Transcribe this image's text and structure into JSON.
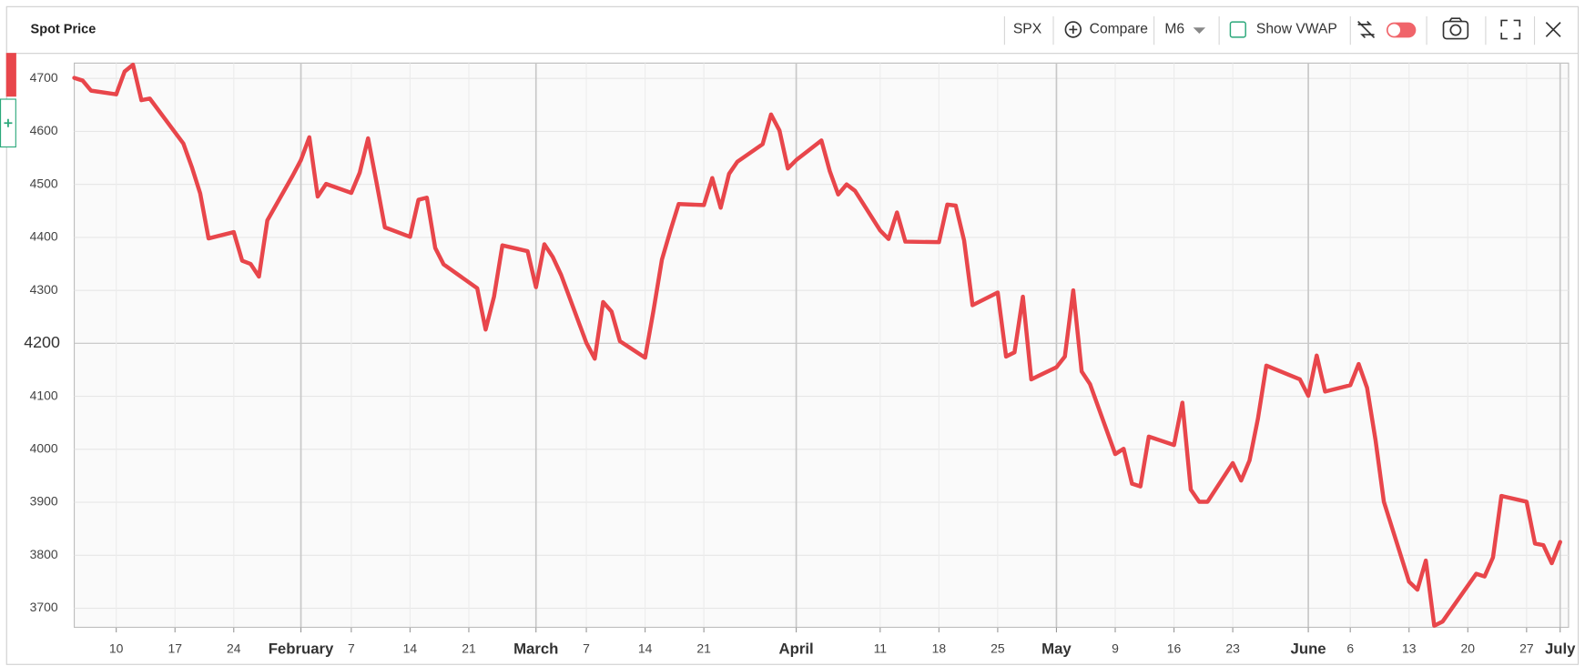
{
  "toolbar": {
    "symbol": "SPX",
    "compare": "Compare",
    "period": "M6",
    "vwap": "Show VWAP"
  },
  "chart_data": {
    "type": "line",
    "title": "Spot Price",
    "x": [
      "01-05",
      "01-06",
      "01-07",
      "01-10",
      "01-11",
      "01-12",
      "01-13",
      "01-14",
      "01-18",
      "01-19",
      "01-20",
      "01-21",
      "01-24",
      "01-25",
      "01-26",
      "01-27",
      "01-28",
      "01-31",
      "02-01",
      "02-02",
      "02-03",
      "02-04",
      "02-07",
      "02-08",
      "02-09",
      "02-10",
      "02-11",
      "02-14",
      "02-15",
      "02-16",
      "02-17",
      "02-18",
      "02-22",
      "02-23",
      "02-24",
      "02-25",
      "02-28",
      "03-01",
      "03-02",
      "03-03",
      "03-04",
      "03-07",
      "03-08",
      "03-09",
      "03-10",
      "03-11",
      "03-14",
      "03-15",
      "03-16",
      "03-17",
      "03-18",
      "03-21",
      "03-22",
      "03-23",
      "03-24",
      "03-25",
      "03-28",
      "03-29",
      "03-30",
      "03-31",
      "04-01",
      "04-04",
      "04-05",
      "04-06",
      "04-07",
      "04-08",
      "04-11",
      "04-12",
      "04-13",
      "04-14",
      "04-18",
      "04-19",
      "04-20",
      "04-21",
      "04-22",
      "04-25",
      "04-26",
      "04-27",
      "04-28",
      "04-29",
      "05-02",
      "05-03",
      "05-04",
      "05-05",
      "05-06",
      "05-09",
      "05-10",
      "05-11",
      "05-12",
      "05-13",
      "05-16",
      "05-17",
      "05-18",
      "05-19",
      "05-20",
      "05-23",
      "05-24",
      "05-25",
      "05-26",
      "05-27",
      "05-31",
      "06-01",
      "06-02",
      "06-03",
      "06-06",
      "06-07",
      "06-08",
      "06-09",
      "06-10",
      "06-13",
      "06-14",
      "06-15",
      "06-16",
      "06-17",
      "06-21",
      "06-22",
      "06-23",
      "06-24",
      "06-27",
      "06-28",
      "06-29",
      "06-30",
      "07-01"
    ],
    "series": [
      {
        "name": "SPX",
        "color": "#e8464b",
        "values": [
          4701,
          4696,
          4677,
          4670,
          4713,
          4726,
          4659,
          4662,
          4577,
          4533,
          4483,
          4398,
          4410,
          4356,
          4350,
          4326,
          4432,
          4516,
          4546,
          4589,
          4477,
          4501,
          4484,
          4522,
          4587,
          4504,
          4419,
          4401,
          4471,
          4475,
          4380,
          4349,
          4304,
          4226,
          4288,
          4385,
          4374,
          4306,
          4387,
          4363,
          4329,
          4201,
          4171,
          4278,
          4260,
          4204,
          4173,
          4262,
          4358,
          4412,
          4463,
          4461,
          4512,
          4456,
          4520,
          4543,
          4576,
          4632,
          4602,
          4530,
          4546,
          4583,
          4525,
          4481,
          4500,
          4488,
          4413,
          4397,
          4447,
          4392,
          4391,
          4462,
          4460,
          4394,
          4272,
          4296,
          4175,
          4183,
          4288,
          4132,
          4155,
          4175,
          4300,
          4147,
          4123,
          3991,
          4001,
          3935,
          3930,
          4024,
          4008,
          4088,
          3924,
          3901,
          3901,
          3974,
          3941,
          3979,
          4058,
          4158,
          4132,
          4101,
          4177,
          4109,
          4121,
          4161,
          4116,
          4018,
          3901,
          3750,
          3735,
          3790,
          3667,
          3675,
          3765,
          3760,
          3796,
          3912,
          3901,
          3822,
          3819,
          3785,
          3825
        ]
      }
    ],
    "xlim": [
      "01-05",
      "07-02"
    ],
    "xticks": [
      {
        "value": "01-10",
        "label": "10"
      },
      {
        "value": "01-17",
        "label": "17"
      },
      {
        "value": "01-24",
        "label": "24"
      },
      {
        "value": "02-01",
        "label": "February"
      },
      {
        "value": "02-07",
        "label": "7"
      },
      {
        "value": "02-14",
        "label": "14"
      },
      {
        "value": "02-21",
        "label": "21"
      },
      {
        "value": "03-01",
        "label": "March"
      },
      {
        "value": "03-07",
        "label": "7"
      },
      {
        "value": "03-14",
        "label": "14"
      },
      {
        "value": "03-21",
        "label": "21"
      },
      {
        "value": "04-01",
        "label": "April"
      },
      {
        "value": "04-11",
        "label": "11"
      },
      {
        "value": "04-18",
        "label": "18"
      },
      {
        "value": "04-25",
        "label": "25"
      },
      {
        "value": "05-02",
        "label": "May"
      },
      {
        "value": "05-09",
        "label": "9"
      },
      {
        "value": "05-16",
        "label": "16"
      },
      {
        "value": "05-23",
        "label": "23"
      },
      {
        "value": "06-01",
        "label": "June"
      },
      {
        "value": "06-06",
        "label": "6"
      },
      {
        "value": "06-13",
        "label": "13"
      },
      {
        "value": "06-20",
        "label": "20"
      },
      {
        "value": "06-27",
        "label": "27"
      },
      {
        "value": "07-01",
        "label": "July"
      }
    ],
    "ylim": [
      3664,
      4729
    ],
    "yticks": [
      3700,
      3800,
      3900,
      4000,
      4100,
      4200,
      4300,
      4400,
      4500,
      4600,
      4700
    ],
    "grid": true
  }
}
